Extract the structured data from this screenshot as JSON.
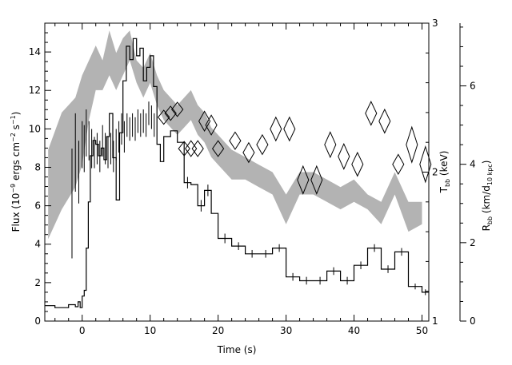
{
  "chart_data": {
    "type": "line",
    "title": "",
    "xlabel": "Time (s)",
    "ylabel_left": "Flux (10⁻⁹ ergs cm⁻² s⁻¹)",
    "ylabel_left_parts": [
      "Flux (10",
      "−9",
      " ergs cm",
      "−2",
      " s",
      "−1",
      ")"
    ],
    "ylabel_kt_parts": [
      "T",
      "bb",
      " (keV)"
    ],
    "ylabel_r_parts": [
      "R",
      "bb",
      " (km/d",
      "10 kpc",
      ")"
    ],
    "xlim": [
      -5.5,
      51
    ],
    "ylim_left": [
      0,
      15.5
    ],
    "ylim_kt": [
      1,
      3
    ],
    "ylim_r": [
      0,
      7.6
    ],
    "x_ticks": [
      0,
      10,
      20,
      30,
      40,
      50
    ],
    "y_left_ticks": [
      0,
      2,
      4,
      6,
      8,
      10,
      12,
      14
    ],
    "y_kt_ticks": [
      1,
      2,
      3
    ],
    "y_r_ticks": [
      0,
      2,
      4,
      6
    ],
    "series": [
      {
        "name": "",
        "kind": "flux_histogram",
        "axis": "left",
        "points": [
          [
            -5.5,
            0.8
          ],
          [
            -4,
            0.7
          ],
          [
            -2,
            0.85
          ],
          [
            -1,
            0.75
          ],
          [
            -0.6,
            1.0
          ],
          [
            -0.3,
            0.7
          ],
          [
            0,
            1.3
          ],
          [
            0.3,
            1.6
          ],
          [
            0.6,
            3.8
          ],
          [
            0.9,
            6.2
          ],
          [
            1.2,
            8.6
          ],
          [
            1.6,
            9.4
          ],
          [
            2.0,
            9.2
          ],
          [
            2.4,
            8.6
          ],
          [
            2.8,
            9.0
          ],
          [
            3.2,
            8.4
          ],
          [
            3.6,
            9.6
          ],
          [
            4.0,
            10.8
          ],
          [
            4.5,
            8.5
          ],
          [
            5.0,
            6.3
          ],
          [
            5.5,
            9.8
          ],
          [
            6.0,
            12.5
          ],
          [
            6.5,
            14.3
          ],
          [
            7.0,
            13.6
          ],
          [
            7.5,
            14.7
          ],
          [
            8.0,
            13.8
          ],
          [
            8.5,
            14.2
          ],
          [
            9.0,
            12.5
          ],
          [
            9.5,
            13.2
          ],
          [
            10.0,
            13.8
          ],
          [
            10.5,
            12.2
          ],
          [
            11.0,
            9.2
          ],
          [
            11.5,
            8.3
          ],
          [
            12.0,
            9.6
          ],
          [
            13.0,
            9.9
          ],
          [
            14.0,
            9.3
          ],
          [
            15.0,
            7.2
          ],
          [
            16.0,
            7.1
          ],
          [
            17.0,
            6.0
          ],
          [
            18.0,
            6.8
          ],
          [
            19.0,
            5.6
          ],
          [
            20.0,
            4.3
          ],
          [
            22.0,
            3.9
          ],
          [
            24.0,
            3.5
          ],
          [
            26.0,
            3.5
          ],
          [
            28.0,
            3.8
          ],
          [
            30.0,
            2.3
          ],
          [
            32.0,
            2.1
          ],
          [
            34.0,
            2.1
          ],
          [
            36.0,
            2.6
          ],
          [
            38.0,
            2.1
          ],
          [
            40.0,
            2.9
          ],
          [
            42.0,
            3.8
          ],
          [
            44.0,
            2.7
          ],
          [
            46.0,
            3.6
          ],
          [
            48.0,
            1.8
          ],
          [
            50.0,
            1.5
          ],
          [
            51.0,
            1.5
          ]
        ]
      },
      {
        "name": "",
        "kind": "flux_errorbars",
        "axis": "left",
        "points": [
          [
            15.5,
            7.2,
            0.3
          ],
          [
            17.5,
            6.0,
            0.3
          ],
          [
            18.5,
            6.8,
            0.3
          ],
          [
            21.0,
            4.3,
            0.25
          ],
          [
            23.0,
            3.9,
            0.2
          ],
          [
            25.0,
            3.5,
            0.2
          ],
          [
            27.0,
            3.5,
            0.2
          ],
          [
            29.0,
            3.8,
            0.2
          ],
          [
            31.0,
            2.3,
            0.2
          ],
          [
            33.0,
            2.1,
            0.2
          ],
          [
            35.0,
            2.1,
            0.2
          ],
          [
            37.0,
            2.6,
            0.2
          ],
          [
            39.0,
            2.1,
            0.2
          ],
          [
            41.0,
            2.9,
            0.2
          ],
          [
            43.0,
            3.8,
            0.2
          ],
          [
            45.0,
            2.7,
            0.2
          ],
          [
            47.0,
            3.6,
            0.2
          ],
          [
            49.0,
            1.8,
            0.15
          ],
          [
            50.5,
            1.5,
            0.15
          ]
        ]
      },
      {
        "name": "",
        "kind": "kT_band",
        "axis": "kt",
        "points": [
          [
            -5,
            2.15,
            1.55
          ],
          [
            -3,
            2.4,
            1.75
          ],
          [
            -1,
            2.5,
            1.9
          ],
          [
            0,
            2.65,
            2.05
          ],
          [
            1,
            2.75,
            2.35
          ],
          [
            2,
            2.85,
            2.55
          ],
          [
            3,
            2.75,
            2.55
          ],
          [
            4,
            2.95,
            2.65
          ],
          [
            5,
            2.8,
            2.55
          ],
          [
            6,
            2.9,
            2.65
          ],
          [
            7,
            2.95,
            2.75
          ],
          [
            8,
            2.75,
            2.6
          ],
          [
            9,
            2.7,
            2.5
          ],
          [
            10,
            2.8,
            2.6
          ],
          [
            11,
            2.65,
            2.45
          ],
          [
            12,
            2.55,
            2.35
          ],
          [
            13,
            2.5,
            2.3
          ],
          [
            14,
            2.45,
            2.25
          ],
          [
            15,
            2.5,
            2.3
          ],
          [
            16,
            2.55,
            2.35
          ],
          [
            17,
            2.45,
            2.25
          ],
          [
            18,
            2.4,
            2.2
          ],
          [
            19,
            2.3,
            2.1
          ],
          [
            20,
            2.25,
            2.05
          ],
          [
            21,
            2.2,
            2.0
          ],
          [
            22,
            2.15,
            1.95
          ],
          [
            24,
            2.1,
            1.95
          ],
          [
            26,
            2.05,
            1.9
          ],
          [
            28,
            2.0,
            1.85
          ],
          [
            30,
            1.85,
            1.65
          ],
          [
            32,
            2.0,
            1.85
          ],
          [
            34,
            2.0,
            1.85
          ],
          [
            36,
            1.95,
            1.8
          ],
          [
            38,
            1.9,
            1.75
          ],
          [
            40,
            1.95,
            1.8
          ],
          [
            42,
            1.85,
            1.75
          ],
          [
            44,
            1.8,
            1.65
          ],
          [
            46,
            2.0,
            1.85
          ],
          [
            48,
            1.8,
            1.6
          ],
          [
            50,
            1.8,
            1.65
          ]
        ]
      },
      {
        "name": "",
        "kind": "radius_errorbars",
        "axis": "r",
        "points": [
          [
            -1.5,
            3.0,
            1.4
          ],
          [
            -1.0,
            4.3,
            1.0
          ],
          [
            -0.5,
            3.8,
            0.8
          ],
          [
            0.0,
            4.5,
            0.6
          ],
          [
            0.3,
            4.4,
            0.6
          ],
          [
            0.6,
            4.8,
            0.6
          ],
          [
            1.0,
            4.6,
            0.5
          ],
          [
            1.4,
            4.4,
            0.5
          ],
          [
            1.8,
            4.3,
            0.4
          ],
          [
            2.2,
            4.4,
            0.4
          ],
          [
            2.6,
            4.2,
            0.4
          ],
          [
            3.0,
            4.6,
            0.4
          ],
          [
            3.4,
            4.4,
            0.4
          ],
          [
            3.8,
            4.3,
            0.4
          ],
          [
            4.2,
            4.4,
            0.4
          ],
          [
            4.6,
            4.2,
            0.4
          ],
          [
            5.0,
            4.5,
            0.4
          ],
          [
            5.4,
            4.7,
            0.4
          ],
          [
            5.8,
            4.9,
            0.4
          ],
          [
            6.2,
            4.7,
            0.4
          ],
          [
            6.6,
            5.0,
            0.3
          ],
          [
            7.0,
            4.9,
            0.3
          ],
          [
            7.4,
            5.0,
            0.3
          ],
          [
            7.8,
            4.9,
            0.3
          ],
          [
            8.2,
            5.1,
            0.3
          ],
          [
            8.6,
            5.0,
            0.3
          ],
          [
            9.0,
            5.1,
            0.3
          ],
          [
            9.4,
            5.0,
            0.3
          ],
          [
            9.8,
            5.3,
            0.3
          ],
          [
            10.2,
            5.2,
            0.3
          ],
          [
            10.6,
            5.0,
            0.3
          ]
        ]
      },
      {
        "name": "",
        "kind": "radius_diamonds",
        "axis": "r",
        "points": [
          [
            12,
            5.2,
            0.18
          ],
          [
            13,
            5.3,
            0.18
          ],
          [
            14,
            5.4,
            0.18
          ],
          [
            15,
            4.4,
            0.18
          ],
          [
            16,
            4.4,
            0.2
          ],
          [
            17,
            4.4,
            0.2
          ],
          [
            18,
            5.1,
            0.25
          ],
          [
            19,
            5.0,
            0.25
          ],
          [
            20,
            4.4,
            0.2
          ],
          [
            22.5,
            4.6,
            0.22
          ],
          [
            24.5,
            4.3,
            0.25
          ],
          [
            26.5,
            4.5,
            0.25
          ],
          [
            28.5,
            4.9,
            0.3
          ],
          [
            30.5,
            4.9,
            0.3
          ],
          [
            32.5,
            3.6,
            0.35
          ],
          [
            34.5,
            3.6,
            0.35
          ],
          [
            36.5,
            4.5,
            0.32
          ],
          [
            38.5,
            4.2,
            0.32
          ],
          [
            40.5,
            4.0,
            0.3
          ],
          [
            42.5,
            5.3,
            0.3
          ],
          [
            44.5,
            5.1,
            0.3
          ],
          [
            46.5,
            4.0,
            0.25
          ],
          [
            48.5,
            4.5,
            0.45
          ],
          [
            50.5,
            4.0,
            0.45
          ]
        ]
      }
    ]
  }
}
